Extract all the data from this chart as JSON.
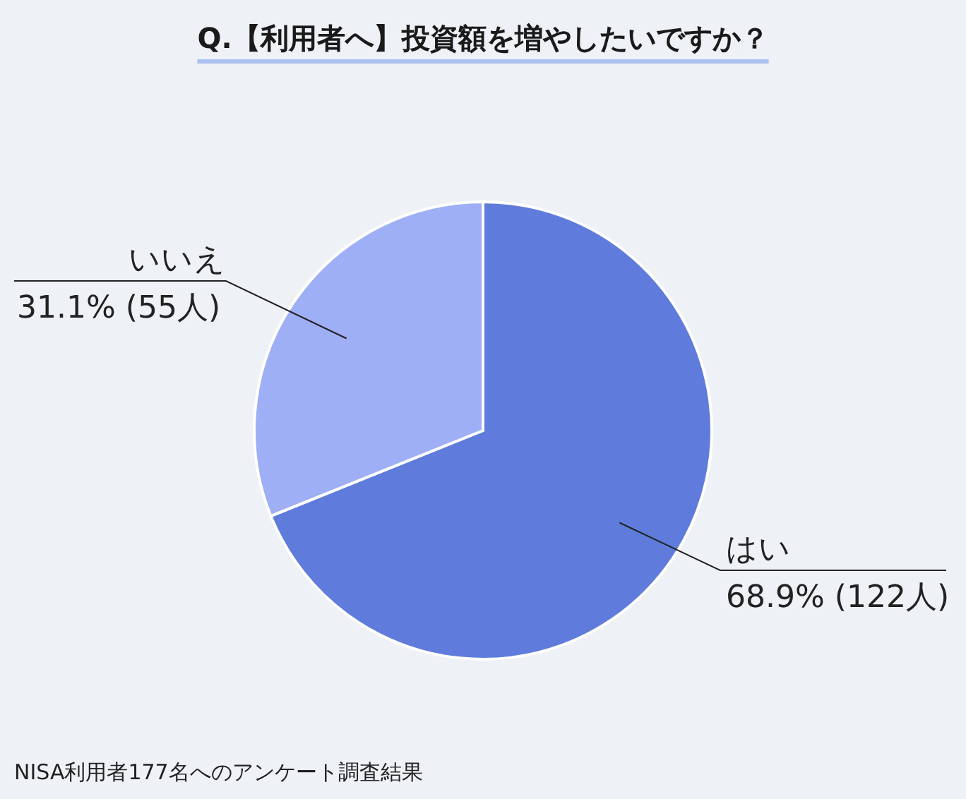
{
  "chart_data": {
    "type": "pie",
    "title": "Q.【利用者へ】投資額を増やしたいですか？",
    "categories": [
      "はい",
      "いいえ"
    ],
    "values": [
      68.9,
      31.1
    ],
    "value_labels": [
      "68.9% (122人)",
      "31.1% (55人)"
    ],
    "colors": [
      "#5f7cdc",
      "#9eaff6"
    ],
    "annotations": [
      "NISA利用者177名へのアンケート調査結果"
    ]
  }
}
